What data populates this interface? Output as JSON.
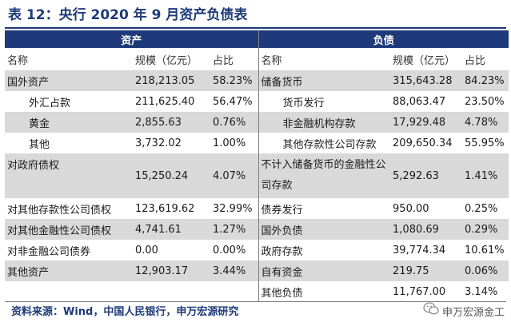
{
  "title": "表 12：央行 2020 年 9 月资产负债表",
  "headers": {
    "assets": "资产",
    "liabilities": "负债",
    "name": "名称",
    "scale": "规模（亿元）",
    "share": "占比"
  },
  "rows": [
    {
      "la": "国外资产",
      "lv": "218,213.05",
      "lp": "58.23%",
      "ra": "储备货币",
      "rv": "315,643.28",
      "rp": "84.23%"
    },
    {
      "la": "外汇占款",
      "lv": "211,625.40",
      "lp": "56.47%",
      "ra": "货币发行",
      "rv": "88,063.47",
      "rp": "23.50%"
    },
    {
      "la": "黄金",
      "lv": "2,855.63",
      "lp": "0.76%",
      "ra": "非金融机构存款",
      "rv": "17,929.48",
      "rp": "4.78%"
    },
    {
      "la": "其他",
      "lv": "3,732.02",
      "lp": "1.00%",
      "ra": "其他存款性公司存款",
      "rv": "209,650.34",
      "rp": "55.95%"
    },
    {
      "la": "对政府债权",
      "lv": "15,250.24",
      "lp": "4.07%",
      "ra": "不计入储备货币的金融性公司存款",
      "rv": "5,292.63",
      "rp": "1.41%"
    },
    {
      "la": "对其他存款性公司债权",
      "lv": "123,619.62",
      "lp": "32.99%",
      "ra": "债券发行",
      "rv": "950.00",
      "rp": "0.25%"
    },
    {
      "la": "对其他金融性公司债权",
      "lv": "4,741.61",
      "lp": "1.27%",
      "ra": "国外负债",
      "rv": "1,080.69",
      "rp": "0.29%"
    },
    {
      "la": "对非金融公司债券",
      "lv": "0.00",
      "lp": "0.00%",
      "ra": "政府存款",
      "rv": "39,774.34",
      "rp": "10.61%"
    },
    {
      "la": "其他资产",
      "lv": "12,903.17",
      "lp": "3.44%",
      "ra": "自有资金",
      "rv": "219.75",
      "rp": "0.06%"
    },
    {
      "la": "",
      "lv": "",
      "lp": "",
      "ra": "其他负债",
      "rv": "11,767.00",
      "rp": "3.14%"
    }
  ],
  "source": "资料来源：Wind，中国人民银行，申万宏源研究",
  "brand": "申万宏源金工",
  "colors": {
    "header": "#1f3a7a",
    "stripe": "#d9d9d9"
  }
}
